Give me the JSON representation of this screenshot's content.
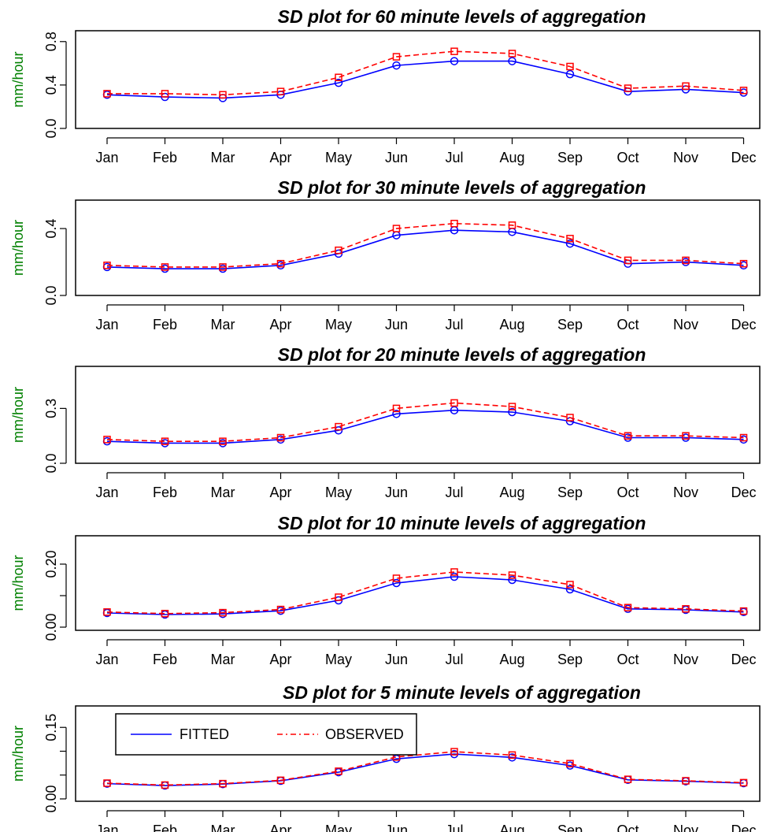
{
  "colors": {
    "fitted": "#0000ff",
    "observed": "#ff0000",
    "ylabel": "#008000",
    "axis": "#000000"
  },
  "chart_data": [
    {
      "type": "line",
      "title": "SD plot for 60 minute levels of aggregation",
      "xlabel": "",
      "ylabel": "mm/hour",
      "categories": [
        "Jan",
        "Feb",
        "Mar",
        "Apr",
        "May",
        "Jun",
        "Jul",
        "Aug",
        "Sep",
        "Oct",
        "Nov",
        "Dec"
      ],
      "ylim": [
        0,
        0.9
      ],
      "yticks": [
        0.0,
        0.4,
        0.8
      ],
      "ytick_labels": [
        "0.0",
        "0.4",
        "0.8"
      ],
      "series": [
        {
          "name": "FITTED",
          "marker": "circle",
          "line": "solid",
          "values": [
            0.31,
            0.29,
            0.28,
            0.31,
            0.42,
            0.58,
            0.62,
            0.62,
            0.5,
            0.34,
            0.36,
            0.33
          ]
        },
        {
          "name": "OBSERVED",
          "marker": "square",
          "line": "dashed",
          "values": [
            0.32,
            0.32,
            0.31,
            0.34,
            0.47,
            0.66,
            0.71,
            0.69,
            0.57,
            0.37,
            0.39,
            0.35
          ]
        }
      ],
      "legend": null
    },
    {
      "type": "line",
      "title": "SD plot for 30 minute levels of aggregation",
      "xlabel": "",
      "ylabel": "mm/hour",
      "categories": [
        "Jan",
        "Feb",
        "Mar",
        "Apr",
        "May",
        "Jun",
        "Jul",
        "Aug",
        "Sep",
        "Oct",
        "Nov",
        "Dec"
      ],
      "ylim": [
        0,
        0.57
      ],
      "yticks": [
        0.0,
        0.4
      ],
      "ytick_labels": [
        "0.0",
        "0.4"
      ],
      "series": [
        {
          "name": "FITTED",
          "marker": "circle",
          "line": "solid",
          "values": [
            0.17,
            0.16,
            0.16,
            0.18,
            0.25,
            0.36,
            0.39,
            0.38,
            0.31,
            0.19,
            0.2,
            0.18
          ]
        },
        {
          "name": "OBSERVED",
          "marker": "square",
          "line": "dashed",
          "values": [
            0.18,
            0.17,
            0.17,
            0.19,
            0.27,
            0.4,
            0.43,
            0.42,
            0.34,
            0.21,
            0.21,
            0.19
          ]
        }
      ],
      "legend": null
    },
    {
      "type": "line",
      "title": "SD plot for 20 minute levels of aggregation",
      "xlabel": "",
      "ylabel": "mm/hour",
      "categories": [
        "Jan",
        "Feb",
        "Mar",
        "Apr",
        "May",
        "Jun",
        "Jul",
        "Aug",
        "Sep",
        "Oct",
        "Nov",
        "Dec"
      ],
      "ylim": [
        0,
        0.53
      ],
      "yticks": [
        0.0,
        0.3
      ],
      "ytick_labels": [
        "0.0",
        "0.3"
      ],
      "series": [
        {
          "name": "FITTED",
          "marker": "circle",
          "line": "solid",
          "values": [
            0.12,
            0.11,
            0.11,
            0.13,
            0.18,
            0.27,
            0.29,
            0.28,
            0.23,
            0.14,
            0.14,
            0.13
          ]
        },
        {
          "name": "OBSERVED",
          "marker": "square",
          "line": "dashed",
          "values": [
            0.13,
            0.12,
            0.12,
            0.14,
            0.2,
            0.3,
            0.33,
            0.31,
            0.25,
            0.15,
            0.15,
            0.14
          ]
        }
      ],
      "legend": null
    },
    {
      "type": "line",
      "title": "SD plot for 10 minute levels of aggregation",
      "xlabel": "",
      "ylabel": "mm/hour",
      "categories": [
        "Jan",
        "Feb",
        "Mar",
        "Apr",
        "May",
        "Jun",
        "Jul",
        "Aug",
        "Sep",
        "Oct",
        "Nov",
        "Dec"
      ],
      "ylim": [
        -0.01,
        0.29
      ],
      "yticks": [
        0.0,
        0.1,
        0.2
      ],
      "ytick_labels": [
        "0.00",
        "",
        "0.20"
      ],
      "series": [
        {
          "name": "FITTED",
          "marker": "circle",
          "line": "solid",
          "values": [
            0.045,
            0.04,
            0.042,
            0.052,
            0.085,
            0.14,
            0.16,
            0.15,
            0.12,
            0.058,
            0.055,
            0.048
          ]
        },
        {
          "name": "OBSERVED",
          "marker": "square",
          "line": "dashed",
          "values": [
            0.048,
            0.043,
            0.046,
            0.056,
            0.095,
            0.155,
            0.175,
            0.165,
            0.135,
            0.062,
            0.058,
            0.051
          ]
        }
      ],
      "legend": null
    },
    {
      "type": "line",
      "title": "SD plot for 5 minute levels of aggregation",
      "xlabel": "",
      "ylabel": "mm/hour",
      "categories": [
        "Jan",
        "Feb",
        "Mar",
        "Apr",
        "May",
        "Jun",
        "Jul",
        "Aug",
        "Sep",
        "Oct",
        "Nov",
        "Dec"
      ],
      "ylim": [
        -0.005,
        0.195
      ],
      "yticks": [
        0.0,
        0.05,
        0.1,
        0.15
      ],
      "ytick_labels": [
        "0.00",
        "",
        "",
        "0.15"
      ],
      "series": [
        {
          "name": "FITTED",
          "marker": "circle",
          "line": "solid",
          "values": [
            0.032,
            0.028,
            0.031,
            0.038,
            0.056,
            0.084,
            0.094,
            0.087,
            0.07,
            0.04,
            0.037,
            0.033
          ]
        },
        {
          "name": "OBSERVED",
          "marker": "square",
          "line": "dashed",
          "values": [
            0.033,
            0.029,
            0.032,
            0.039,
            0.058,
            0.088,
            0.099,
            0.092,
            0.074,
            0.041,
            0.038,
            0.034
          ]
        }
      ],
      "legend": {
        "placement": "top-left",
        "entries": [
          {
            "label": "FITTED",
            "line": "solid",
            "color": "#0000ff"
          },
          {
            "label": "OBSERVED",
            "line": "dashed",
            "color": "#ff0000"
          }
        ]
      }
    }
  ]
}
